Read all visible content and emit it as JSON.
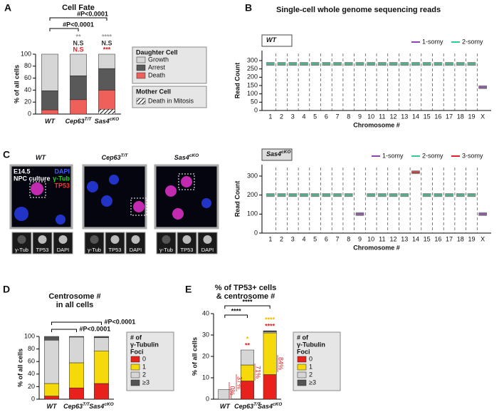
{
  "panel_labels": [
    "A",
    "B",
    "C",
    "D",
    "E"
  ],
  "images": {
    "titles": [
      "WT",
      "Cep63",
      "Sas4"
    ],
    "title_superscripts": [
      null,
      "T/T",
      "cKO"
    ],
    "overlay": [
      "E14.5",
      "NPC culture"
    ],
    "channels": [
      "DAPI",
      "γ-Tub",
      "TP53"
    ],
    "insets": [
      "γ-Tub",
      "TP53",
      "DAPI"
    ]
  },
  "chart_data": [
    {
      "type": "stacked-bar",
      "title": "Cell Fate",
      "categories": [
        "WT",
        "Cep63",
        "Sas4"
      ],
      "category_superscripts": [
        null,
        "T/T",
        "cKO"
      ],
      "ylabel": "% of all cells",
      "ylim": [
        0,
        100
      ],
      "yticks": [
        0,
        20,
        40,
        60,
        80,
        100
      ],
      "legend_title": "Daughter Cell",
      "series": [
        {
          "name": "Death",
          "color": "#f0605a",
          "values": [
            7,
            24,
            40
          ]
        },
        {
          "name": "Arrest",
          "color": "#595959",
          "values": [
            32,
            40,
            36
          ]
        },
        {
          "name": "Growth",
          "color": "#d6d6d6",
          "values": [
            61,
            36,
            24
          ]
        }
      ],
      "mother_cell": {
        "title": "Mother Cell",
        "name": "Death in Mitosis",
        "values": [
          null,
          null,
          8
        ]
      },
      "brackets": [
        "#P<0.0001",
        "#P<0.0001"
      ],
      "bar_annotations": [
        null,
        [
          "**",
          "N.S",
          "N.S"
        ],
        [
          "****",
          "N.S",
          "***"
        ]
      ]
    },
    {
      "type": "segments",
      "title": "Single-cell whole genome sequencing reads",
      "sample": "WT",
      "ylabel": "Read Count",
      "xlabel": "Chromosome #",
      "ylim": [
        0,
        360
      ],
      "yticks": [
        0,
        50,
        100,
        150,
        200,
        250,
        300
      ],
      "categories": [
        "1",
        "2",
        "3",
        "4",
        "5",
        "6",
        "7",
        "8",
        "9",
        "10",
        "11",
        "12",
        "13",
        "14",
        "15",
        "16",
        "17",
        "18",
        "19",
        "X"
      ],
      "series": [
        {
          "name": "1-somy",
          "color": "#8e44ad",
          "values": [
            null,
            null,
            null,
            null,
            null,
            null,
            null,
            null,
            null,
            null,
            null,
            null,
            null,
            null,
            null,
            null,
            null,
            null,
            null,
            140
          ]
        },
        {
          "name": "2-somy",
          "color": "#2ecc8f",
          "values": [
            280,
            280,
            280,
            280,
            280,
            280,
            280,
            280,
            280,
            280,
            280,
            280,
            280,
            280,
            280,
            280,
            280,
            280,
            280,
            null
          ]
        }
      ]
    },
    {
      "type": "segments",
      "sample": "Sas4",
      "sample_superscript": "cKO",
      "ylabel": "Read Count",
      "xlabel": "Chromosome #",
      "ylim": [
        0,
        360
      ],
      "yticks": [
        0,
        100,
        200,
        300
      ],
      "categories": [
        "1",
        "2",
        "3",
        "4",
        "5",
        "6",
        "7",
        "8",
        "9",
        "10",
        "11",
        "12",
        "13",
        "14",
        "15",
        "16",
        "17",
        "18",
        "19",
        "X"
      ],
      "series": [
        {
          "name": "1-somy",
          "color": "#8e44ad",
          "values": [
            null,
            null,
            null,
            null,
            null,
            null,
            null,
            null,
            100,
            null,
            null,
            null,
            null,
            null,
            null,
            null,
            null,
            null,
            null,
            100
          ]
        },
        {
          "name": "2-somy",
          "color": "#2ecc8f",
          "values": [
            200,
            200,
            200,
            200,
            200,
            200,
            200,
            200,
            null,
            200,
            200,
            200,
            200,
            null,
            200,
            200,
            200,
            200,
            200,
            null
          ]
        },
        {
          "name": "3-somy",
          "color": "#e02020",
          "values": [
            null,
            null,
            null,
            null,
            null,
            null,
            null,
            null,
            null,
            null,
            null,
            null,
            null,
            320,
            null,
            null,
            null,
            null,
            null,
            null
          ]
        }
      ]
    },
    {
      "type": "stacked-bar",
      "title": [
        "Centrosome #",
        "in all cells"
      ],
      "categories": [
        "WT",
        "Cep63",
        "Sas4"
      ],
      "category_superscripts": [
        null,
        "T/T",
        "cKO"
      ],
      "ylabel": "% of all cells",
      "ylim": [
        0,
        100
      ],
      "yticks": [
        0,
        20,
        40,
        60,
        80,
        100
      ],
      "legend_title": [
        "# of",
        "γ-Tubulin",
        "Foci"
      ],
      "series": [
        {
          "name": "0",
          "color": "#e8211c",
          "values": [
            5,
            18,
            25
          ]
        },
        {
          "name": "1",
          "color": "#f5d90a",
          "values": [
            20,
            40,
            52
          ]
        },
        {
          "name": "2",
          "color": "#d6d6d6",
          "values": [
            69,
            41,
            21
          ]
        },
        {
          "name": "≥3",
          "color": "#555555",
          "values": [
            6,
            1,
            2
          ]
        }
      ],
      "brackets": [
        "#P<0.0001",
        "#P<0.0001"
      ]
    },
    {
      "type": "stacked-bar",
      "title": [
        "% of TP53+ cells",
        "& centrosome #"
      ],
      "categories": [
        "WT",
        "Cep63",
        "Sas4"
      ],
      "category_superscripts": [
        null,
        "T/T",
        "cKO"
      ],
      "ylabel": "% of all cells",
      "ylim": [
        0,
        40
      ],
      "yticks": [
        0,
        10,
        20,
        30,
        40
      ],
      "legend_title": [
        "# of",
        "γ-Tubulin",
        "Foci"
      ],
      "series": [
        {
          "name": "0",
          "color": "#e8211c",
          "values": [
            0,
            8.5,
            11.5
          ]
        },
        {
          "name": "1",
          "color": "#f5d90a",
          "values": [
            0,
            7.5,
            19.5
          ]
        },
        {
          "name": "2",
          "color": "#d6d6d6",
          "values": [
            4.5,
            7,
            0.5
          ]
        },
        {
          "name": "≥3",
          "color": "#555555",
          "values": [
            0,
            0,
            0.5
          ]
        }
      ],
      "brackets": [
        "****",
        "****"
      ],
      "bar_annotations": [
        null,
        [
          "*",
          "**"
        ],
        [
          "****",
          "****"
        ]
      ],
      "percent_labels": [
        "0%",
        "37%",
        "71%",
        "84%"
      ]
    }
  ]
}
